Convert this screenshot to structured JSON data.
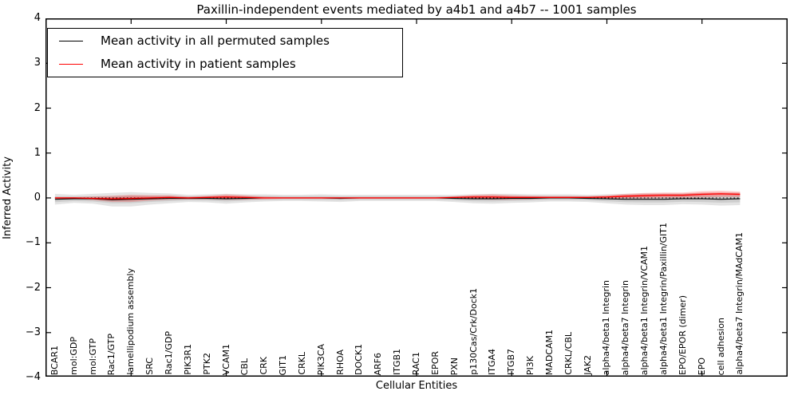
{
  "figure": {
    "background": "#ffffff",
    "frame_color": "#000000"
  },
  "chart_data": {
    "type": "line",
    "title": "Paxillin-independent events mediated by a4b1 and a4b7 -- 1001 samples",
    "xlabel": "Cellular Entities",
    "ylabel": "Inferred Activity",
    "ylim": [
      -4,
      4
    ],
    "ytick_values": [
      4,
      3,
      2,
      1,
      0,
      -1,
      -2,
      -3,
      -4
    ],
    "ytick_labels": [
      "4",
      "3",
      "2",
      "1",
      "0",
      "−1",
      "−2",
      "−3",
      "−4"
    ],
    "xtick_positions": [
      5,
      10,
      15,
      20,
      25,
      30,
      35
    ],
    "grid": false,
    "zero_line": true,
    "legend_position": "upper left",
    "categories": [
      "BCAR1",
      "mol:GDP",
      "mol:GTP",
      "Rac1/GTP",
      "lamellipodium assembly",
      "SRC",
      "Rac1/GDP",
      "PIK3R1",
      "PTK2",
      "VCAM1",
      "CBL",
      "CRK",
      "GIT1",
      "CRKL",
      "PIK3CA",
      "RHOA",
      "DOCK1",
      "ARF6",
      "ITGB1",
      "RAC1",
      "EPOR",
      "PXN",
      "p130Cas/Crk/Dock1",
      "ITGA4",
      "ITGB7",
      "PI3K",
      "MADCAM1",
      "CRKL/CBL",
      "JAK2",
      "alpha4/beta1 Integrin",
      "alpha4/beta7 Integrin",
      "alpha4/beta1 Integrin/VCAM1",
      "alpha4/beta1 Integrin/Paxillin/GIT1",
      "EPO/EPOR (dimer)",
      "EPO",
      "cell adhesion",
      "alpha4/beta7 Integrin/MAdCAM1"
    ],
    "series": [
      {
        "name": "Mean activity in all permuted samples",
        "color": "#000000",
        "band_color": "#787878",
        "mean": [
          -0.03,
          -0.02,
          -0.02,
          -0.04,
          -0.03,
          -0.02,
          -0.01,
          -0.01,
          -0.01,
          -0.02,
          -0.01,
          0,
          0,
          0,
          0,
          -0.01,
          0,
          0,
          0,
          0,
          0,
          -0.01,
          -0.02,
          -0.02,
          -0.01,
          -0.01,
          0,
          0,
          -0.01,
          -0.02,
          -0.03,
          -0.03,
          -0.03,
          -0.02,
          -0.02,
          -0.03,
          -0.02
        ],
        "std": [
          0.12,
          0.09,
          0.11,
          0.15,
          0.16,
          0.13,
          0.11,
          0.08,
          0.09,
          0.11,
          0.09,
          0.08,
          0.07,
          0.07,
          0.08,
          0.08,
          0.07,
          0.07,
          0.07,
          0.07,
          0.07,
          0.08,
          0.1,
          0.11,
          0.1,
          0.09,
          0.08,
          0.08,
          0.08,
          0.1,
          0.12,
          0.13,
          0.13,
          0.12,
          0.13,
          0.14,
          0.14
        ]
      },
      {
        "name": "Mean activity in patient samples",
        "color": "#ff0000",
        "band_color": "#ff0000",
        "mean": [
          0,
          0,
          -0.01,
          -0.02,
          -0.01,
          0,
          0.01,
          0,
          0.01,
          0.02,
          0.01,
          0,
          0,
          0,
          0,
          0,
          0,
          0,
          0,
          0,
          0,
          0.01,
          0.02,
          0.02,
          0.01,
          0.01,
          0.01,
          0.01,
          0.01,
          0.02,
          0.04,
          0.05,
          0.06,
          0.06,
          0.08,
          0.09,
          0.08
        ],
        "std": [
          0.02,
          0.02,
          0.04,
          0.07,
          0.08,
          0.06,
          0.05,
          0.03,
          0.04,
          0.06,
          0.05,
          0.03,
          0.02,
          0.02,
          0.02,
          0.02,
          0.02,
          0.02,
          0.02,
          0.02,
          0.02,
          0.03,
          0.05,
          0.06,
          0.05,
          0.04,
          0.03,
          0.03,
          0.03,
          0.04,
          0.05,
          0.06,
          0.06,
          0.06,
          0.07,
          0.07,
          0.06
        ]
      }
    ]
  }
}
